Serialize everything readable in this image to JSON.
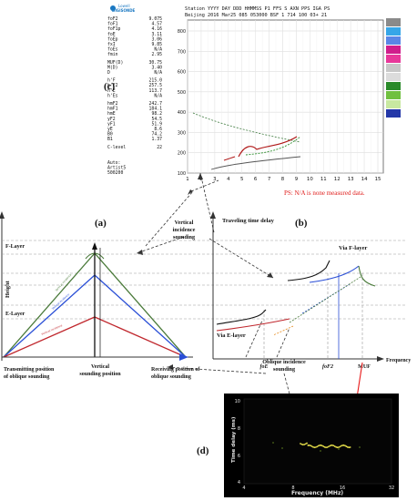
{
  "panel_c": {
    "logo_top": "Lowell",
    "logo_bottom": "DIGISONDE",
    "header_line1": "Station YYYY DAY   DDD HHMMSS P1  FFS S AXN PPS IGA PS",
    "header_line2": "Beijing 2016 Mar25 085 053000 BSF    1 714 100 03+ 21",
    "params": [
      {
        "k": "foF2",
        "v": "9.075"
      },
      {
        "k": "foF1",
        "v": "4.57"
      },
      {
        "k": "foF1p",
        "v": "4.16"
      },
      {
        "k": "foE",
        "v": "3.11"
      },
      {
        "k": "foEp",
        "v": "3.06"
      },
      {
        "k": "fxI",
        "v": "9.85"
      },
      {
        "k": "foEs",
        "v": "N/A"
      },
      {
        "k": "fmin",
        "v": "2.95"
      },
      {
        "k": "MUF(D)",
        "v": "30.75"
      },
      {
        "k": "M(D)",
        "v": "3.40"
      },
      {
        "k": "D",
        "v": "N/A"
      },
      {
        "k": "h'F",
        "v": "215.0"
      },
      {
        "k": "h'F2",
        "v": "257.5"
      },
      {
        "k": "h'E",
        "v": "113.7"
      },
      {
        "k": "h'Es",
        "v": "N/A"
      },
      {
        "k": "hmF2",
        "v": "242.7"
      },
      {
        "k": "hmF1",
        "v": "184.1"
      },
      {
        "k": "hmE",
        "v": "98.2"
      },
      {
        "k": "yF2",
        "v": "54.5"
      },
      {
        "k": "yF1",
        "v": "51.9"
      },
      {
        "k": "yE",
        "v": "8.6"
      },
      {
        "k": "B0",
        "v": "74.2"
      },
      {
        "k": "B1",
        "v": "1.37"
      },
      {
        "k": "C-level",
        "v": "22"
      }
    ],
    "footer_lines": [
      "Auto:",
      "Artist5",
      "500200"
    ],
    "x_ticks": [
      "1",
      "2",
      "3",
      "4",
      "5",
      "6",
      "7",
      "8",
      "9",
      "10",
      "11",
      "12",
      "13",
      "14",
      "15"
    ],
    "y_ticks": [
      "800",
      "700",
      "600",
      "500",
      "400",
      "300",
      "200",
      "100"
    ],
    "ps_note": "PS: N/A is none measured data.",
    "label": "(c)"
  },
  "panel_a": {
    "label": "(a)",
    "f_layer": "F-Layer",
    "e_layer": "E-Layer",
    "height": "Height",
    "transmitting": [
      "Transmitting position",
      "of oblique  sounding"
    ],
    "vertical_pos": [
      "Vertical",
      "sounding position"
    ],
    "receiving": [
      "Receiving position of",
      "oblique  sounding"
    ],
    "ray_label": "Vertical incidence"
  },
  "center_labels": {
    "vertical_incidence": [
      "Vertical",
      "incidence",
      "sounding"
    ],
    "oblique_incidence": [
      "Oblique incidence",
      "sounding"
    ]
  },
  "panel_b": {
    "label": "(b)",
    "traveling": "Traveling  time delay",
    "via_f": "Via F-layer",
    "via_e": "Via E-layer",
    "frequency": "Frequency",
    "tick_foe": "foE",
    "tick_fof2": "foF2",
    "tick_muf": "MUF"
  },
  "panel_d": {
    "label": "(d)",
    "ylabel": "Time delay (ms)",
    "xlabel": "Frequency (MHz)",
    "y_ticks": [
      "10",
      "8",
      "6",
      "4"
    ],
    "x_ticks": [
      "4",
      "8",
      "16",
      "32"
    ]
  },
  "colors": {
    "f_layer": "#4a7a3a",
    "e_layer": "#c0282e",
    "blue": "#2a4fd6",
    "red_arrow": "#e81c1c",
    "grid": "#d5d5d5"
  }
}
